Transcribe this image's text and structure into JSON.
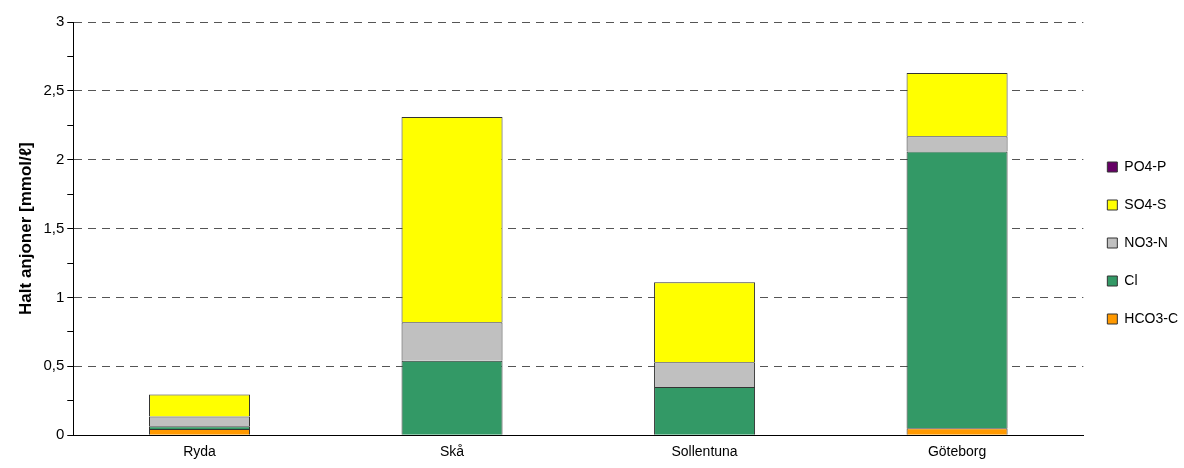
{
  "chart_data": {
    "type": "bar",
    "stacked": true,
    "ylabel": "Halt anjoner [mmol/ℓ]",
    "categories": [
      "Ryda",
      "Skå",
      "Sollentuna",
      "Göteborg"
    ],
    "series": [
      {
        "name": "HCO3-C",
        "color": "#ff9900",
        "values": [
          0.045,
          0,
          0,
          0.05
        ]
      },
      {
        "name": "Cl",
        "color": "#339966",
        "values": [
          0.02,
          0.54,
          0.35,
          2.01
        ]
      },
      {
        "name": "NO3-N",
        "color": "#c0c0c0",
        "values": [
          0.07,
          0.28,
          0.18,
          0.11
        ]
      },
      {
        "name": "SO4-S",
        "color": "#ffff00",
        "values": [
          0.16,
          1.49,
          0.58,
          0.46
        ]
      },
      {
        "name": "PO4-P",
        "color": "#660066",
        "values": [
          0,
          0,
          0,
          0
        ]
      }
    ],
    "ylim": [
      0,
      3
    ],
    "yticks": [
      0,
      {
        "value": 0.25,
        "label": null
      },
      {
        "value": 0.5,
        "label": "0,5"
      },
      {
        "value": 0.75,
        "label": null
      },
      1,
      {
        "value": 1.25,
        "label": null
      },
      {
        "value": 1.5,
        "label": "1,5"
      },
      {
        "value": 1.75,
        "label": null
      },
      2,
      {
        "value": 2.25,
        "label": null
      },
      {
        "value": 2.5,
        "label": "2,5"
      },
      {
        "value": 2.75,
        "label": null
      },
      3
    ],
    "grid": "y",
    "legend": "right"
  }
}
